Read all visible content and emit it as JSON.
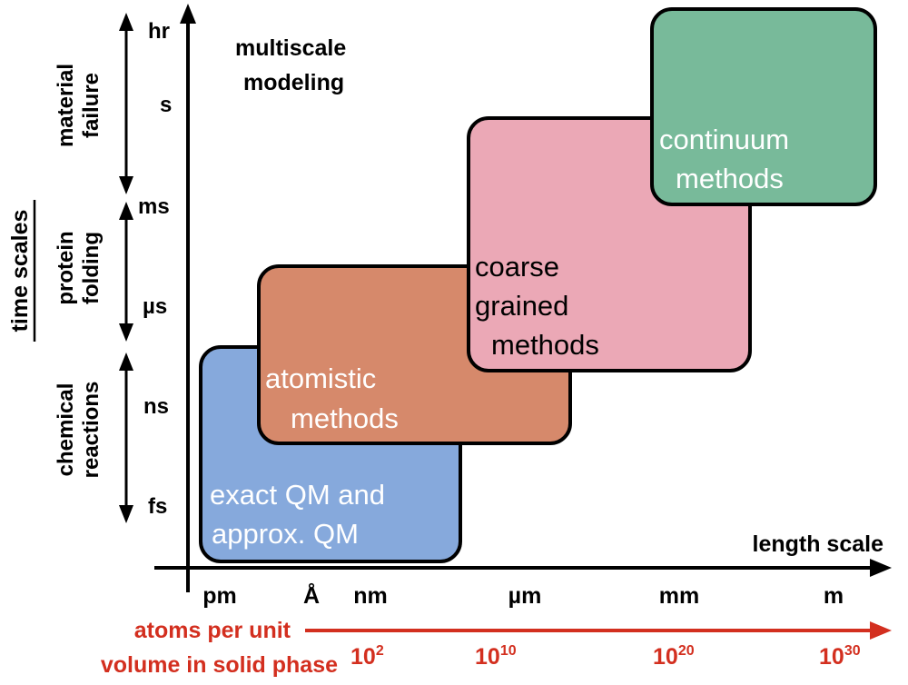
{
  "title": {
    "line1": "multiscale",
    "line2": "modeling"
  },
  "y_axis": {
    "label": "time scales",
    "ticks": {
      "hr": "hr",
      "s": "s",
      "ms": "ms",
      "us": "µs",
      "ns": "ns",
      "fs": "fs"
    },
    "ranges": [
      {
        "line1": "material",
        "line2": "failure"
      },
      {
        "line1": "protein",
        "line2": "folding"
      },
      {
        "line1": "chemical",
        "line2": "reactions"
      }
    ]
  },
  "x_axis": {
    "label": "length scale",
    "ticks": {
      "pm": "pm",
      "angstrom": "Å",
      "nm": "nm",
      "um": "µm",
      "mm": "mm",
      "m": "m"
    }
  },
  "atoms": {
    "line1": "atoms per unit",
    "line2": "volume in solid phase",
    "ticks": [
      {
        "base": "10",
        "exp": "2"
      },
      {
        "base": "10",
        "exp": "10"
      },
      {
        "base": "10",
        "exp": "20"
      },
      {
        "base": "10",
        "exp": "30"
      }
    ]
  },
  "boxes": [
    {
      "id": "qm",
      "line1": "exact QM and",
      "line2": "approx. QM",
      "fill": "#86a9dc"
    },
    {
      "id": "atomistic",
      "line1": "atomistic",
      "line2": "methods",
      "fill": "#d6896b"
    },
    {
      "id": "coarse",
      "line1": "coarse",
      "line2": "grained",
      "line3": "methods",
      "fill": "#eba8b6"
    },
    {
      "id": "continuum",
      "line1": "continuum",
      "line2": "methods",
      "fill": "#78ba9a"
    }
  ],
  "colors": {
    "axis": "#000000",
    "atoms": "#d32f1f"
  }
}
